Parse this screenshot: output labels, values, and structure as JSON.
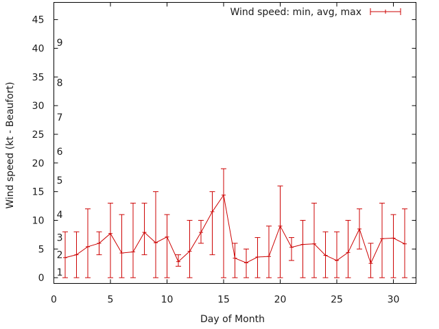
{
  "chart_data": {
    "type": "line",
    "title": "",
    "xlabel": "Day of Month",
    "ylabel": "Wind speed (kt - Beaufort)",
    "xlim": [
      0,
      32
    ],
    "ylim": [
      -1,
      48
    ],
    "xticks": [
      0,
      5,
      10,
      15,
      20,
      25,
      30
    ],
    "yticks": [
      0,
      5,
      10,
      15,
      20,
      25,
      30,
      35,
      40,
      45
    ],
    "beaufort_labels": [
      {
        "label": "1",
        "y": 1
      },
      {
        "label": "2",
        "y": 4
      },
      {
        "label": "3",
        "y": 7
      },
      {
        "label": "4",
        "y": 11
      },
      {
        "label": "5",
        "y": 17
      },
      {
        "label": "6",
        "y": 22
      },
      {
        "label": "7",
        "y": 28
      },
      {
        "label": "8",
        "y": 34
      },
      {
        "label": "9",
        "y": 41
      }
    ],
    "legend": {
      "label": "Wind speed: min, avg, max",
      "position": "top-right"
    },
    "series": [
      {
        "name": "Wind speed: min, avg, max",
        "color": "#cc0000",
        "x": [
          1,
          2,
          3,
          4,
          5,
          6,
          7,
          8,
          9,
          10,
          11,
          12,
          13,
          14,
          15,
          16,
          17,
          18,
          19,
          20,
          21,
          22,
          23,
          24,
          25,
          26,
          27,
          28,
          29,
          30,
          31
        ],
        "avg": [
          3.5,
          4,
          5.4,
          6,
          7.7,
          4.3,
          4.5,
          7.9,
          6.1,
          7.1,
          2.8,
          4.6,
          7.9,
          11.5,
          14.4,
          3.4,
          2.6,
          3.6,
          3.7,
          9,
          5.3,
          5.8,
          5.9,
          3.9,
          3,
          4.4,
          8.5,
          2.5,
          6.8,
          6.9,
          5.9
        ],
        "min": [
          0,
          0,
          0,
          4,
          0,
          0,
          0,
          4,
          0,
          0,
          2,
          0,
          6,
          4,
          0,
          0,
          0,
          0,
          0,
          0,
          3,
          0,
          0,
          0,
          0,
          0,
          5,
          0,
          0,
          0,
          0
        ],
        "max": [
          8,
          8,
          12,
          8,
          13,
          11,
          13,
          13,
          15,
          11,
          4,
          10,
          10,
          15,
          19,
          6,
          5,
          7,
          9,
          16,
          7,
          10,
          13,
          8,
          8,
          10,
          12,
          6,
          13,
          11,
          12
        ]
      }
    ]
  }
}
